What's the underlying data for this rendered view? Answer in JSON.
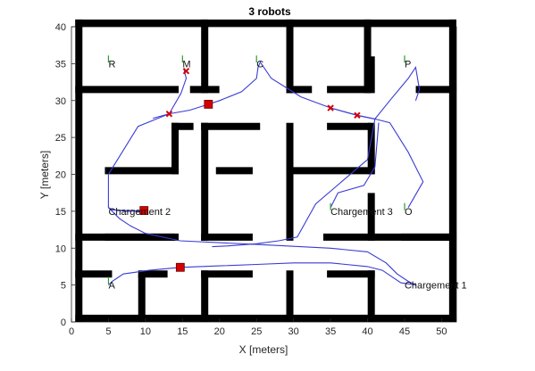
{
  "chart_data": {
    "type": "line",
    "title": "3 robots",
    "xlabel": "X [meters]",
    "ylabel": "Y [meters]",
    "xlim": [
      0,
      52
    ],
    "ylim": [
      0,
      40
    ],
    "xticks": [
      0,
      5,
      10,
      15,
      20,
      25,
      30,
      35,
      40,
      45,
      50
    ],
    "yticks": [
      0,
      5,
      10,
      15,
      20,
      25,
      30,
      35,
      40
    ],
    "grid": false,
    "colors": {
      "walls": "#000000",
      "path": "#3a3ad6",
      "robot": "#d40000",
      "waypoint": "#2a9d2a"
    },
    "walls": [
      [
        [
          1,
          0.5
        ],
        [
          51.5,
          0.5
        ]
      ],
      [
        [
          1,
          40.5
        ],
        [
          51.5,
          40.5
        ]
      ],
      [
        [
          1,
          0.5
        ],
        [
          1,
          40.5
        ]
      ],
      [
        [
          51.5,
          0.5
        ],
        [
          51.5,
          40.5
        ]
      ],
      [
        [
          1,
          31.5
        ],
        [
          14,
          31.5
        ]
      ],
      [
        [
          1,
          11.5
        ],
        [
          14,
          11.5
        ]
      ],
      [
        [
          1,
          6.5
        ],
        [
          5,
          6.5
        ]
      ],
      [
        [
          9.5,
          0.5
        ],
        [
          9.5,
          6
        ]
      ],
      [
        [
          9.5,
          6.5
        ],
        [
          12.5,
          6.5
        ]
      ],
      [
        [
          18,
          40.5
        ],
        [
          18,
          31.5
        ]
      ],
      [
        [
          16.5,
          31.5
        ],
        [
          19.5,
          31.5
        ]
      ],
      [
        [
          29.5,
          40.5
        ],
        [
          29.5,
          31.5
        ]
      ],
      [
        [
          29.5,
          31.5
        ],
        [
          32,
          31.5
        ]
      ],
      [
        [
          40,
          40.5
        ],
        [
          40,
          31.5
        ]
      ],
      [
        [
          35,
          31.5
        ],
        [
          40,
          31.5
        ]
      ],
      [
        [
          40.5,
          35.5
        ],
        [
          40.5,
          31.5
        ]
      ],
      [
        [
          47,
          31.5
        ],
        [
          51.5,
          31.5
        ]
      ],
      [
        [
          18,
          26.5
        ],
        [
          25,
          26.5
        ]
      ],
      [
        [
          18,
          26.5
        ],
        [
          18,
          11.5
        ]
      ],
      [
        [
          18,
          11.5
        ],
        [
          24,
          11.5
        ]
      ],
      [
        [
          29.5,
          26.5
        ],
        [
          29.5,
          11.5
        ]
      ],
      [
        [
          35,
          26.5
        ],
        [
          40,
          26.5
        ]
      ],
      [
        [
          40.5,
          26.5
        ],
        [
          40.5,
          20.5
        ]
      ],
      [
        [
          5,
          20.5
        ],
        [
          14,
          20.5
        ]
      ],
      [
        [
          14,
          20.5
        ],
        [
          14,
          26.5
        ]
      ],
      [
        [
          14,
          26.5
        ],
        [
          16,
          26.5
        ]
      ],
      [
        [
          20,
          20.5
        ],
        [
          24,
          20.5
        ]
      ],
      [
        [
          29.5,
          20.5
        ],
        [
          40.5,
          20.5
        ]
      ],
      [
        [
          5,
          11.5
        ],
        [
          13.5,
          11.5
        ]
      ],
      [
        [
          34.5,
          11.5
        ],
        [
          51.5,
          11.5
        ]
      ],
      [
        [
          40.5,
          11.5
        ],
        [
          40.5,
          17
        ]
      ],
      [
        [
          18,
          6.5
        ],
        [
          18,
          0.5
        ]
      ],
      [
        [
          18,
          6.5
        ],
        [
          24,
          6.5
        ]
      ],
      [
        [
          29.5,
          6.5
        ],
        [
          29.5,
          0.5
        ]
      ],
      [
        [
          35,
          6.5
        ],
        [
          40.5,
          6.5
        ]
      ],
      [
        [
          40.5,
          6.5
        ],
        [
          40.5,
          0.5
        ]
      ],
      [
        [
          45,
          11.5
        ],
        [
          51.5,
          11.5
        ]
      ]
    ],
    "labels": [
      {
        "text": "R",
        "x": 5,
        "y": 35
      },
      {
        "text": "M",
        "x": 15,
        "y": 35
      },
      {
        "text": "C",
        "x": 25,
        "y": 35
      },
      {
        "text": "P",
        "x": 45,
        "y": 35
      },
      {
        "text": "Chargement 2",
        "x": 5,
        "y": 15
      },
      {
        "text": "Chargement 3",
        "x": 35,
        "y": 15
      },
      {
        "text": "O",
        "x": 45,
        "y": 15
      },
      {
        "text": "A",
        "x": 5,
        "y": 5
      },
      {
        "text": "Chargement 1",
        "x": 45,
        "y": 5
      }
    ],
    "waypoints": [
      [
        5,
        35.5
      ],
      [
        15,
        35.5
      ],
      [
        25,
        35.5
      ],
      [
        45,
        35.5
      ],
      [
        35,
        15.5
      ],
      [
        45,
        15.5
      ],
      [
        5,
        5.5
      ]
    ],
    "robots": [
      [
        18.5,
        29.5
      ],
      [
        9.8,
        15.1
      ],
      [
        14.7,
        7.4
      ]
    ],
    "crosses": [
      [
        15.5,
        34
      ],
      [
        13.2,
        28.2
      ],
      [
        38.6,
        28
      ],
      [
        35,
        29
      ]
    ],
    "paths": [
      {
        "x": [
          15.2,
          15.5,
          14.8,
          13.2,
          9,
          5,
          5,
          5.5,
          7.5,
          9.8
        ],
        "y": [
          34.2,
          33,
          31,
          28.2,
          26.5,
          20,
          15.5,
          15.2,
          15,
          15.1
        ]
      },
      {
        "x": [
          9.8,
          9,
          5.5,
          5,
          5.5,
          6.5,
          8,
          10,
          14.7,
          25,
          35,
          40,
          42.5,
          44,
          45.5,
          46.5
        ],
        "y": [
          15.1,
          15,
          15.2,
          15.5,
          15,
          14,
          13,
          12,
          11,
          10.5,
          10,
          9.5,
          8,
          6.5,
          5.5,
          5
        ]
      },
      {
        "x": [
          46.5,
          44.5,
          42,
          40,
          35,
          30,
          25,
          20,
          14.7,
          10.5,
          7,
          5.5,
          5
        ],
        "y": [
          5,
          5.3,
          7,
          7.5,
          8,
          8,
          7.8,
          7.6,
          7.4,
          7,
          6.5,
          5.5,
          5
        ]
      },
      {
        "x": [
          18.5,
          20,
          23,
          25,
          25.2,
          25.5,
          27,
          31,
          35,
          38.6,
          41,
          40,
          33,
          30.5,
          28,
          25,
          21,
          19
        ],
        "y": [
          29.5,
          30,
          31.2,
          33,
          34.5,
          35.2,
          33,
          30.5,
          29,
          28,
          27.5,
          22,
          16,
          11.5,
          11,
          10.6,
          10.3,
          10.2
        ]
      },
      {
        "x": [
          18.5,
          16,
          13.2,
          11
        ],
        "y": [
          29.5,
          28.7,
          28.2,
          27.6
        ]
      },
      {
        "x": [
          45.5,
          47.5,
          45.5,
          43,
          41,
          38.6,
          35
        ],
        "y": [
          15.5,
          19,
          23,
          27,
          27.5,
          28,
          29
        ]
      },
      {
        "x": [
          41,
          43,
          45.5,
          46.5,
          47,
          46.5
        ],
        "y": [
          27.5,
          30,
          33,
          34.5,
          31.5,
          30
        ]
      },
      {
        "x": [
          35,
          36,
          39.5,
          41,
          41.5
        ],
        "y": [
          15.5,
          17.5,
          18.5,
          21,
          27
        ]
      }
    ]
  }
}
